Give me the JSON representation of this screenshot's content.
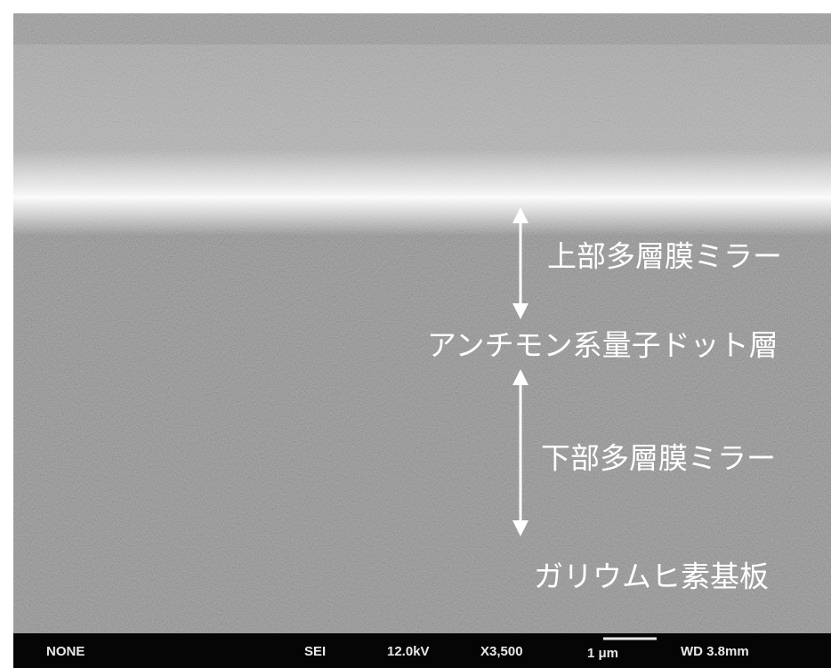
{
  "labels": [
    "上部多層膜ミラー",
    "アンチモン系量子ドット層",
    "下部多層膜ミラー",
    "ガリウムヒ素基板"
  ],
  "info_bar": {
    "mode": "NONE",
    "detector": "SEI",
    "voltage": "12.0kV",
    "magnification": "X3,500",
    "scale": "1 μm",
    "working_distance": "WD 3.8mm"
  }
}
